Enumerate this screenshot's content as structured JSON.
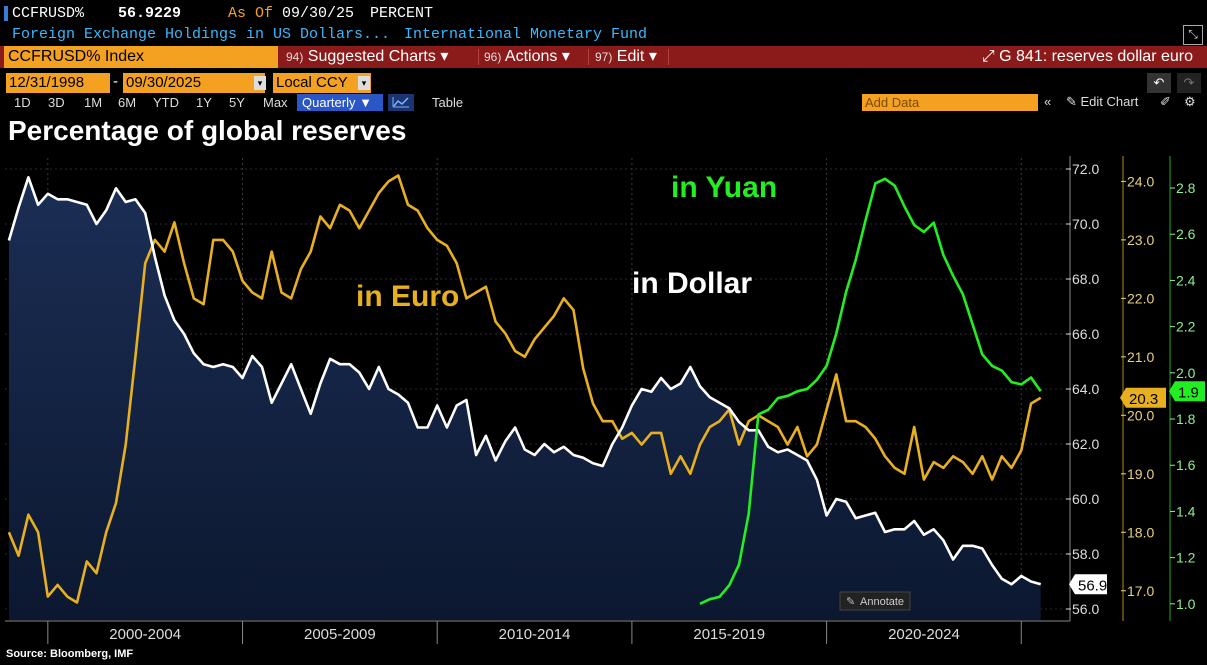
{
  "header": {
    "ticker": "CCFRUSD%",
    "price": "56.9229",
    "as_of_label": "As Of",
    "as_of_date": "09/30/25",
    "unit": "PERCENT",
    "description": "Foreign Exchange Holdings in US Dollars...",
    "source_name": "International Monetary Fund"
  },
  "menu": {
    "index_name": "CCFRUSD% Index",
    "suggested_num": "94)",
    "suggested_label": "Suggested Charts",
    "actions_num": "96)",
    "actions_label": "Actions",
    "edit_num": "97)",
    "edit_label": "Edit",
    "related_label": "G 841: reserves dollar euro"
  },
  "controls": {
    "start_date": "12/31/1998",
    "end_date": "09/30/2025",
    "currency": "Local CCY",
    "periods": [
      "1D",
      "3D",
      "1M",
      "6M",
      "YTD",
      "1Y",
      "5Y",
      "Max"
    ],
    "frequency": "Quarterly",
    "table_label": "Table",
    "add_data_placeholder": "Add Data",
    "edit_chart_label": "Edit Chart"
  },
  "colors": {
    "dollar": "#ffffff",
    "euro": "#e8b020",
    "yuan": "#22ee22",
    "area_top": "#1b2e55",
    "area_bottom": "#0c1830",
    "accent": "#f4a020"
  },
  "chart_data": {
    "type": "line",
    "title": "Percentage of global reserves",
    "x_labels": [
      "2000-2004",
      "2005-2009",
      "2010-2014",
      "2015-2019",
      "2020-2024"
    ],
    "x_range": [
      1998.9,
      2026.2
    ],
    "annotation_button": "Annotate",
    "source": "Source: Bloomberg, IMF",
    "axes": {
      "dollar": {
        "range": [
          55.6,
          72.4
        ],
        "ticks": [
          56.0,
          58.0,
          60.0,
          62.0,
          64.0,
          66.0,
          68.0,
          70.0,
          72.0
        ],
        "last": "56.9"
      },
      "euro": {
        "range": [
          16.5,
          24.4
        ],
        "ticks": [
          17.0,
          18.0,
          19.0,
          20.0,
          21.0,
          22.0,
          23.0,
          24.0
        ],
        "last": "20.3"
      },
      "yuan": {
        "range": [
          0.93,
          2.93
        ],
        "ticks": [
          1.0,
          1.2,
          1.4,
          1.6,
          1.8,
          2.0,
          2.2,
          2.4,
          2.6,
          2.8
        ],
        "last": "1.9"
      }
    },
    "series": [
      {
        "name": "in Dollar",
        "axis": "dollar",
        "points": [
          [
            1999.0,
            69.4
          ],
          [
            1999.25,
            70.6
          ],
          [
            1999.5,
            71.7
          ],
          [
            1999.75,
            70.7
          ],
          [
            2000.0,
            71.1
          ],
          [
            2000.25,
            70.9
          ],
          [
            2000.5,
            70.9
          ],
          [
            2000.75,
            70.8
          ],
          [
            2001.0,
            70.7
          ],
          [
            2001.25,
            70.0
          ],
          [
            2001.5,
            70.5
          ],
          [
            2001.75,
            71.3
          ],
          [
            2002.0,
            70.8
          ],
          [
            2002.25,
            70.9
          ],
          [
            2002.5,
            70.4
          ],
          [
            2002.75,
            68.8
          ],
          [
            2003.0,
            67.4
          ],
          [
            2003.25,
            66.5
          ],
          [
            2003.5,
            66.0
          ],
          [
            2003.75,
            65.3
          ],
          [
            2004.0,
            64.9
          ],
          [
            2004.25,
            64.8
          ],
          [
            2004.5,
            64.9
          ],
          [
            2004.75,
            64.8
          ],
          [
            2005.0,
            64.4
          ],
          [
            2005.25,
            65.2
          ],
          [
            2005.5,
            64.8
          ],
          [
            2005.75,
            63.5
          ],
          [
            2006.0,
            64.2
          ],
          [
            2006.25,
            64.9
          ],
          [
            2006.5,
            64.0
          ],
          [
            2006.75,
            63.1
          ],
          [
            2007.0,
            64.2
          ],
          [
            2007.25,
            65.1
          ],
          [
            2007.5,
            64.9
          ],
          [
            2007.75,
            64.9
          ],
          [
            2008.0,
            64.6
          ],
          [
            2008.25,
            64.0
          ],
          [
            2008.5,
            64.8
          ],
          [
            2008.75,
            64.0
          ],
          [
            2009.0,
            63.8
          ],
          [
            2009.25,
            63.5
          ],
          [
            2009.5,
            62.6
          ],
          [
            2009.75,
            62.6
          ],
          [
            2010.0,
            63.4
          ],
          [
            2010.25,
            62.6
          ],
          [
            2010.5,
            63.4
          ],
          [
            2010.75,
            63.6
          ],
          [
            2011.0,
            61.6
          ],
          [
            2011.25,
            62.3
          ],
          [
            2011.5,
            61.4
          ],
          [
            2011.75,
            62.1
          ],
          [
            2012.0,
            62.6
          ],
          [
            2012.25,
            61.8
          ],
          [
            2012.5,
            61.6
          ],
          [
            2012.75,
            62.0
          ],
          [
            2013.0,
            61.7
          ],
          [
            2013.25,
            61.9
          ],
          [
            2013.5,
            61.6
          ],
          [
            2013.75,
            61.5
          ],
          [
            2014.0,
            61.3
          ],
          [
            2014.25,
            61.2
          ],
          [
            2014.5,
            62.0
          ],
          [
            2014.75,
            62.6
          ],
          [
            2015.0,
            63.4
          ],
          [
            2015.25,
            64.0
          ],
          [
            2015.5,
            63.9
          ],
          [
            2015.75,
            64.4
          ],
          [
            2016.0,
            64.0
          ],
          [
            2016.25,
            64.2
          ],
          [
            2016.5,
            64.8
          ],
          [
            2016.75,
            64.1
          ],
          [
            2017.0,
            63.7
          ],
          [
            2017.25,
            63.5
          ],
          [
            2017.5,
            63.3
          ],
          [
            2017.75,
            62.8
          ],
          [
            2018.0,
            62.5
          ],
          [
            2018.25,
            62.5
          ],
          [
            2018.5,
            61.9
          ],
          [
            2018.75,
            61.7
          ],
          [
            2019.0,
            61.8
          ],
          [
            2019.25,
            61.6
          ],
          [
            2019.5,
            61.4
          ],
          [
            2019.75,
            60.7
          ],
          [
            2020.0,
            59.4
          ],
          [
            2020.25,
            60.0
          ],
          [
            2020.5,
            59.9
          ],
          [
            2020.75,
            59.3
          ],
          [
            2021.0,
            59.4
          ],
          [
            2021.25,
            59.5
          ],
          [
            2021.5,
            58.8
          ],
          [
            2021.75,
            58.9
          ],
          [
            2022.0,
            58.9
          ],
          [
            2022.25,
            59.2
          ],
          [
            2022.5,
            58.7
          ],
          [
            2022.75,
            58.9
          ],
          [
            2023.0,
            58.5
          ],
          [
            2023.25,
            57.8
          ],
          [
            2023.5,
            58.3
          ],
          [
            2023.75,
            58.3
          ],
          [
            2024.0,
            58.2
          ],
          [
            2024.25,
            57.6
          ],
          [
            2024.5,
            57.1
          ],
          [
            2024.75,
            56.9
          ],
          [
            2025.0,
            57.2
          ],
          [
            2025.25,
            57.0
          ],
          [
            2025.5,
            56.9
          ]
        ]
      },
      {
        "name": "in Euro",
        "axis": "euro",
        "points": [
          [
            1999.0,
            18.0
          ],
          [
            1999.25,
            17.6
          ],
          [
            1999.5,
            18.3
          ],
          [
            1999.75,
            18.0
          ],
          [
            2000.0,
            16.9
          ],
          [
            2000.25,
            17.1
          ],
          [
            2000.5,
            16.9
          ],
          [
            2000.75,
            16.8
          ],
          [
            2001.0,
            17.5
          ],
          [
            2001.25,
            17.3
          ],
          [
            2001.5,
            18.0
          ],
          [
            2001.75,
            18.5
          ],
          [
            2002.0,
            19.5
          ],
          [
            2002.25,
            21.0
          ],
          [
            2002.5,
            22.6
          ],
          [
            2002.75,
            23.0
          ],
          [
            2003.0,
            22.8
          ],
          [
            2003.25,
            23.3
          ],
          [
            2003.5,
            22.6
          ],
          [
            2003.75,
            22.0
          ],
          [
            2004.0,
            21.9
          ],
          [
            2004.25,
            23.0
          ],
          [
            2004.5,
            23.0
          ],
          [
            2004.75,
            22.8
          ],
          [
            2005.0,
            22.3
          ],
          [
            2005.25,
            22.1
          ],
          [
            2005.5,
            22.0
          ],
          [
            2005.75,
            22.8
          ],
          [
            2006.0,
            22.1
          ],
          [
            2006.25,
            22.0
          ],
          [
            2006.5,
            22.5
          ],
          [
            2006.75,
            22.8
          ],
          [
            2007.0,
            23.4
          ],
          [
            2007.25,
            23.2
          ],
          [
            2007.5,
            23.6
          ],
          [
            2007.75,
            23.5
          ],
          [
            2008.0,
            23.2
          ],
          [
            2008.25,
            23.5
          ],
          [
            2008.5,
            23.8
          ],
          [
            2008.75,
            24.0
          ],
          [
            2009.0,
            24.1
          ],
          [
            2009.25,
            23.6
          ],
          [
            2009.5,
            23.5
          ],
          [
            2009.75,
            23.2
          ],
          [
            2010.0,
            23.0
          ],
          [
            2010.25,
            22.9
          ],
          [
            2010.5,
            22.6
          ],
          [
            2010.75,
            22.0
          ],
          [
            2011.0,
            22.1
          ],
          [
            2011.25,
            22.2
          ],
          [
            2011.5,
            21.6
          ],
          [
            2011.75,
            21.4
          ],
          [
            2012.0,
            21.1
          ],
          [
            2012.25,
            21.0
          ],
          [
            2012.5,
            21.3
          ],
          [
            2012.75,
            21.5
          ],
          [
            2013.0,
            21.7
          ],
          [
            2013.25,
            22.0
          ],
          [
            2013.5,
            21.8
          ],
          [
            2013.75,
            20.8
          ],
          [
            2014.0,
            20.2
          ],
          [
            2014.25,
            19.9
          ],
          [
            2014.5,
            19.9
          ],
          [
            2014.75,
            19.6
          ],
          [
            2015.0,
            19.7
          ],
          [
            2015.25,
            19.5
          ],
          [
            2015.5,
            19.7
          ],
          [
            2015.75,
            19.7
          ],
          [
            2016.0,
            19.0
          ],
          [
            2016.25,
            19.3
          ],
          [
            2016.5,
            19.0
          ],
          [
            2016.75,
            19.5
          ],
          [
            2017.0,
            19.8
          ],
          [
            2017.25,
            19.9
          ],
          [
            2017.5,
            20.1
          ],
          [
            2017.75,
            19.5
          ],
          [
            2018.0,
            19.9
          ],
          [
            2018.25,
            20.0
          ],
          [
            2018.5,
            19.9
          ],
          [
            2018.75,
            19.8
          ],
          [
            2019.0,
            19.5
          ],
          [
            2019.25,
            19.8
          ],
          [
            2019.5,
            19.3
          ],
          [
            2019.75,
            19.5
          ],
          [
            2020.0,
            20.1
          ],
          [
            2020.25,
            20.7
          ],
          [
            2020.5,
            19.9
          ],
          [
            2020.75,
            19.9
          ],
          [
            2021.0,
            19.8
          ],
          [
            2021.25,
            19.6
          ],
          [
            2021.5,
            19.3
          ],
          [
            2021.75,
            19.1
          ],
          [
            2022.0,
            19.0
          ],
          [
            2022.25,
            19.8
          ],
          [
            2022.5,
            18.9
          ],
          [
            2022.75,
            19.2
          ],
          [
            2023.0,
            19.1
          ],
          [
            2023.25,
            19.3
          ],
          [
            2023.5,
            19.2
          ],
          [
            2023.75,
            19.0
          ],
          [
            2024.0,
            19.3
          ],
          [
            2024.25,
            18.9
          ],
          [
            2024.5,
            19.3
          ],
          [
            2024.75,
            19.1
          ],
          [
            2025.0,
            19.4
          ],
          [
            2025.25,
            20.2
          ],
          [
            2025.5,
            20.3
          ]
        ]
      },
      {
        "name": "in Yuan",
        "axis": "yuan",
        "points": [
          [
            2016.75,
            1.0
          ],
          [
            2017.0,
            1.02
          ],
          [
            2017.25,
            1.03
          ],
          [
            2017.5,
            1.08
          ],
          [
            2017.75,
            1.17
          ],
          [
            2018.0,
            1.39
          ],
          [
            2018.25,
            1.82
          ],
          [
            2018.5,
            1.84
          ],
          [
            2018.75,
            1.89
          ],
          [
            2019.0,
            1.9
          ],
          [
            2019.25,
            1.92
          ],
          [
            2019.5,
            1.93
          ],
          [
            2019.75,
            1.97
          ],
          [
            2020.0,
            2.03
          ],
          [
            2020.25,
            2.17
          ],
          [
            2020.5,
            2.35
          ],
          [
            2020.75,
            2.49
          ],
          [
            2021.0,
            2.66
          ],
          [
            2021.25,
            2.82
          ],
          [
            2021.5,
            2.84
          ],
          [
            2021.75,
            2.81
          ],
          [
            2022.0,
            2.72
          ],
          [
            2022.25,
            2.64
          ],
          [
            2022.5,
            2.61
          ],
          [
            2022.75,
            2.65
          ],
          [
            2023.0,
            2.51
          ],
          [
            2023.25,
            2.42
          ],
          [
            2023.5,
            2.34
          ],
          [
            2023.75,
            2.21
          ],
          [
            2024.0,
            2.08
          ],
          [
            2024.25,
            2.03
          ],
          [
            2024.5,
            2.01
          ],
          [
            2024.75,
            1.96
          ],
          [
            2025.0,
            1.95
          ],
          [
            2025.25,
            1.98
          ],
          [
            2025.5,
            1.92
          ]
        ]
      }
    ]
  }
}
